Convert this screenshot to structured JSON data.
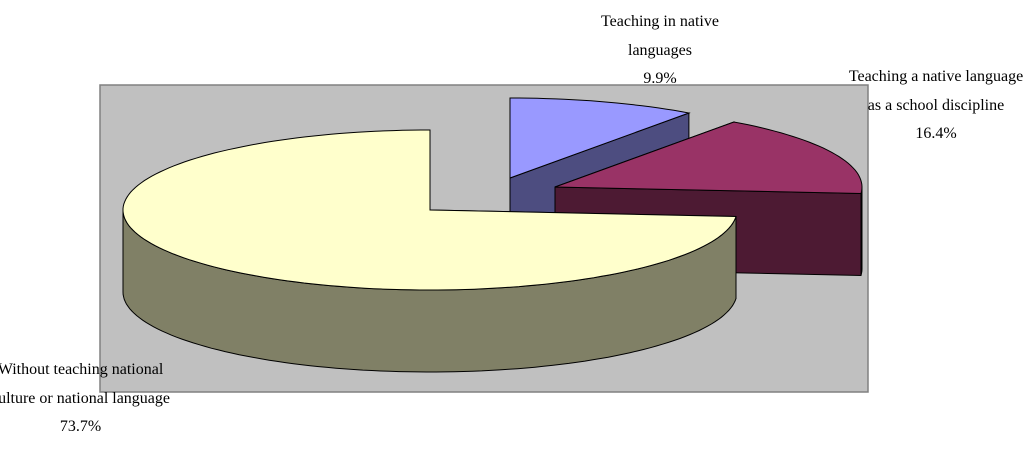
{
  "chart_data": {
    "type": "pie",
    "categories": [
      "Teaching in native languages",
      "Teaching a native language as a school discipline",
      "Without teaching national culture or national language"
    ],
    "values": [
      9.9,
      16.4,
      73.7
    ],
    "value_labels": [
      "9.9%",
      "16.4%",
      "73.7%"
    ],
    "colors": [
      "#9999ff",
      "#993366",
      "#ffffcc"
    ]
  }
}
